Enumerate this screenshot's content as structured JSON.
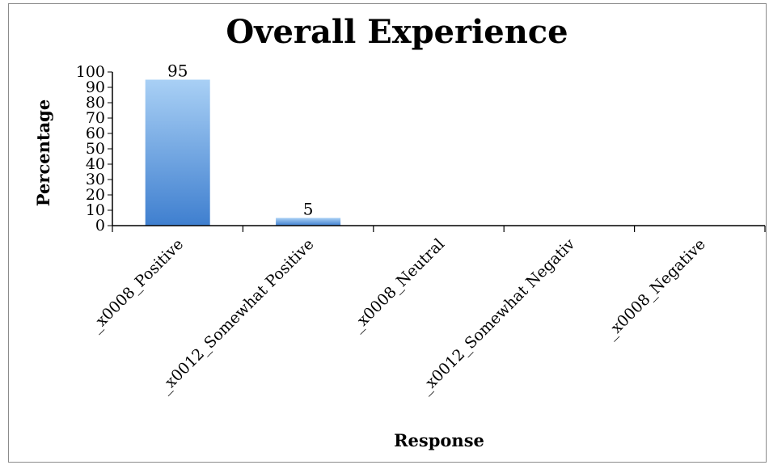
{
  "chart_data": {
    "type": "bar",
    "title": "Overall Experience",
    "xlabel": "Response",
    "ylabel": "Percentage",
    "categories": [
      "_x0008_Positive",
      "_x0012_Somewhat Positive",
      "_x0008_Neutral",
      "_x0012_Somewhat Negative",
      "_x0008_Negative"
    ],
    "category_display": [
      "_x0008_Positive",
      "_x0012_Somewhat Positive",
      "_x0008_Neutral",
      "_x0012_Somewhat Negativ",
      "_x0008_Negative"
    ],
    "values": [
      95,
      5,
      0,
      0,
      0
    ],
    "data_labels": [
      "95",
      "5",
      "",
      "",
      ""
    ],
    "ylim": [
      0,
      100
    ],
    "yticks": [
      0,
      10,
      20,
      30,
      40,
      50,
      60,
      70,
      80,
      90,
      100
    ],
    "ytick_labels": [
      "0",
      "10",
      "20",
      "30",
      "40",
      "50",
      "60",
      "70",
      "80",
      "90",
      "100"
    ],
    "grid": false,
    "legend": "none",
    "colors": {
      "bar_top": "#a9d0f5",
      "bar_bottom": "#3f7fcf",
      "axis": "#000000",
      "frame": "#8c8c8c"
    }
  }
}
